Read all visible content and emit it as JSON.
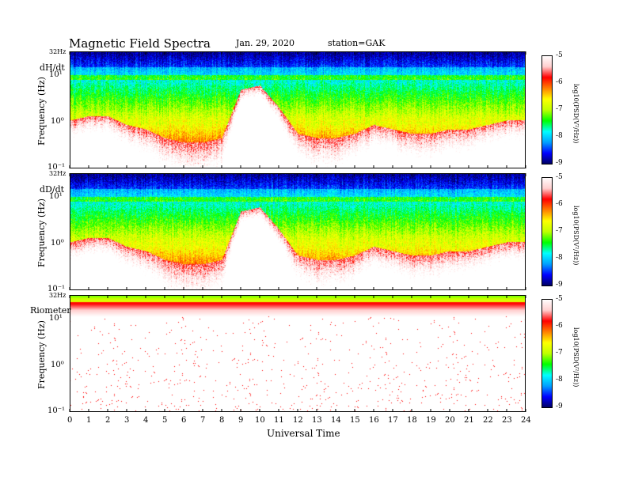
{
  "header": {
    "title": "Magnetic  Field  Spectra",
    "date": "Jan. 29, 2020",
    "station": "station=GAK"
  },
  "colors": {
    "scale": [
      "#000060",
      "#0000ff",
      "#00a0ff",
      "#00ffff",
      "#00ff00",
      "#c0ff00",
      "#ffff00",
      "#ff8000",
      "#ff0000",
      "#ffd0d0",
      "#ffffff"
    ]
  },
  "chart_data": [
    {
      "type": "heatmap",
      "panel": "dH/dt",
      "top_label": "32Hz",
      "ylabel": "Frequency  (Hz)",
      "y_ticks": [
        "10¹",
        "10⁰",
        "10⁻¹"
      ],
      "y_range_hz": [
        0.1,
        32
      ],
      "y_scale": "log",
      "colorbar": {
        "label": "log10(PSD(V²/Hz))",
        "ticks": [
          "-5",
          "-6",
          "-7",
          "-8",
          "-9"
        ],
        "range": [
          -9,
          -5
        ]
      },
      "profile": {
        "low_band": [
          0.55,
          0.6,
          0.6,
          0.5,
          0.45,
          0.35,
          0.3,
          0.3,
          0.35,
          0.9,
          0.95,
          0.7,
          0.4,
          0.35,
          0.35,
          0.4,
          0.5,
          0.45,
          0.4,
          0.4,
          0.45,
          0.45,
          0.5,
          0.55,
          0.55
        ]
      }
    },
    {
      "type": "heatmap",
      "panel": "dD/dt",
      "top_label": "32Hz",
      "ylabel": "Frequency  (Hz)",
      "y_ticks": [
        "10¹",
        "10⁰",
        "10⁻¹"
      ],
      "y_range_hz": [
        0.1,
        32
      ],
      "y_scale": "log",
      "colorbar": {
        "label": "log10(PSD(V²/Hz))",
        "ticks": [
          "-5",
          "-6",
          "-7",
          "-8",
          "-9"
        ],
        "range": [
          -9,
          -5
        ]
      },
      "profile": {
        "low_band": [
          0.55,
          0.6,
          0.6,
          0.5,
          0.45,
          0.35,
          0.3,
          0.3,
          0.35,
          0.9,
          0.95,
          0.7,
          0.4,
          0.35,
          0.35,
          0.4,
          0.5,
          0.45,
          0.4,
          0.4,
          0.45,
          0.45,
          0.5,
          0.55,
          0.55
        ]
      }
    },
    {
      "type": "heatmap",
      "panel": "Riometer",
      "top_label": "32Hz",
      "ylabel": "Frequency  (Hz)",
      "y_ticks": [
        "10¹",
        "10⁰",
        "10⁻¹"
      ],
      "y_range_hz": [
        0.1,
        32
      ],
      "y_scale": "log",
      "colorbar": {
        "label": "log10(PSD(V²/Hz))",
        "ticks": [
          "-5",
          "-6",
          "-7",
          "-8",
          "-9"
        ],
        "range": [
          -9,
          -5
        ]
      },
      "profile": {
        "low_band": [
          0,
          0,
          0,
          0,
          0,
          0,
          0,
          0,
          0,
          0,
          0,
          0,
          0,
          0,
          0,
          0,
          0,
          0,
          0,
          0,
          0,
          0,
          0,
          0,
          0
        ]
      }
    }
  ],
  "xaxis": {
    "label": "Universal  Time",
    "ticks": [
      "0",
      "1",
      "2",
      "3",
      "4",
      "5",
      "6",
      "7",
      "8",
      "9",
      "10",
      "11",
      "12",
      "13",
      "14",
      "15",
      "16",
      "17",
      "18",
      "19",
      "20",
      "21",
      "22",
      "23",
      "24"
    ],
    "range_hours": [
      0,
      24
    ]
  }
}
